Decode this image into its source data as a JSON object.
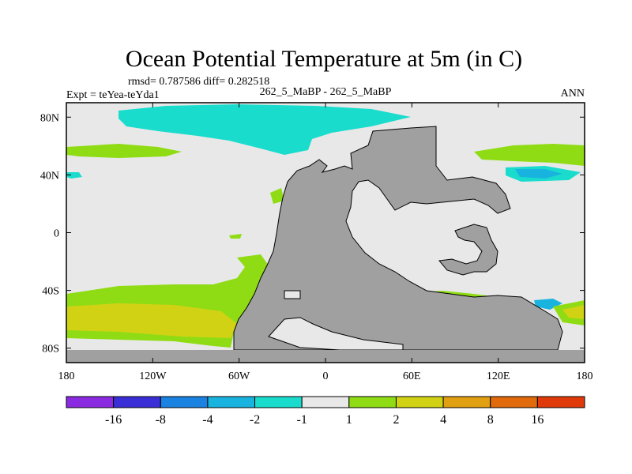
{
  "chart_data": {
    "type": "heatmap",
    "title": "Ocean Potential Temperature at 5m (in C)",
    "stats_text": "rmsd= 0.787586 diff= 0.282518",
    "left_label": "Expt = teYea-teYda1",
    "center_label": "262_5_MaBP - 262_5_MaBP",
    "right_label": "ANN",
    "x_ticks": [
      {
        "lon": -180,
        "label": "180"
      },
      {
        "lon": -120,
        "label": "120W"
      },
      {
        "lon": -60,
        "label": "60W"
      },
      {
        "lon": 0,
        "label": "0"
      },
      {
        "lon": 60,
        "label": "60E"
      },
      {
        "lon": 120,
        "label": "120E"
      },
      {
        "lon": 180,
        "label": "180"
      }
    ],
    "y_ticks": [
      {
        "lat": 80,
        "label": "80N"
      },
      {
        "lat": 40,
        "label": "40N"
      },
      {
        "lat": 0,
        "label": "0"
      },
      {
        "lat": -40,
        "label": "40S"
      },
      {
        "lat": -80,
        "label": "80S"
      }
    ],
    "xlim": [
      -180,
      180
    ],
    "ylim": [
      -90,
      90
    ],
    "colorbar": {
      "levels": [
        "-16",
        "-8",
        "-4",
        "-2",
        "-1",
        "1",
        "2",
        "4",
        "8",
        "16"
      ],
      "colors": [
        "#8a2be2",
        "#3a2fd6",
        "#1a82e0",
        "#19b3e0",
        "#19dccc",
        "#e8e8e8",
        "#8fdc14",
        "#d2d214",
        "#e0a012",
        "#e06a0c",
        "#e03a0a"
      ]
    },
    "land_color": "#a0a0a0",
    "background_color": "#e8e8e8"
  }
}
